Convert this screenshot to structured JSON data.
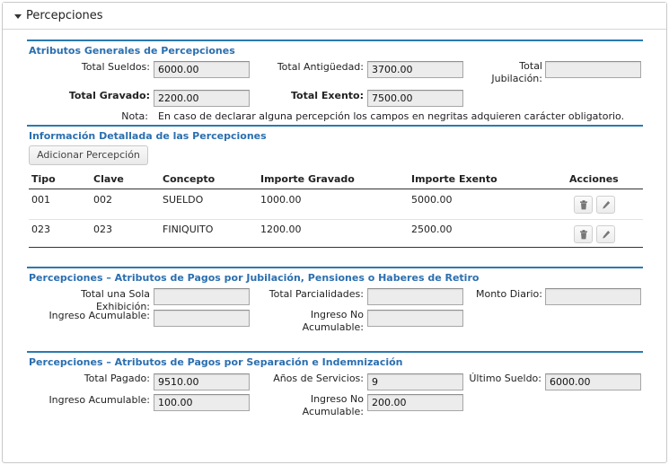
{
  "panel": {
    "title": "Percepciones"
  },
  "generales": {
    "title": "Atributos Generales  de Percepciones",
    "total_sueldos": {
      "label": "Total Sueldos:",
      "value": "6000.00"
    },
    "total_antiguedad": {
      "label": "Total Antigüedad:",
      "value": "3700.00"
    },
    "total_jubilacion": {
      "label_1": "Total",
      "label_2": "Jubilación:",
      "value": ""
    },
    "total_gravado": {
      "label": "Total Gravado:",
      "value": "2200.00"
    },
    "total_exento": {
      "label": "Total Exento:",
      "value": "7500.00"
    },
    "nota_label": "Nota:",
    "nota_text": "En caso de declarar alguna percepción los campos en negritas adquieren carácter obligatorio."
  },
  "detalle": {
    "title": "Información Detallada de las Percepciones",
    "add_button": "Adicionar Percepción",
    "columns": [
      "Tipo",
      "Clave",
      "Concepto",
      "Importe Gravado",
      "Importe Exento",
      "Acciones"
    ],
    "rows": [
      {
        "tipo": "001",
        "clave": "002",
        "concepto": "SUELDO",
        "gravado": "1000.00",
        "exento": "5000.00"
      },
      {
        "tipo": "023",
        "clave": "023",
        "concepto": "FINIQUITO",
        "gravado": "1200.00",
        "exento": "2500.00"
      }
    ],
    "icons": {
      "delete": "trash-icon",
      "edit": "pencil-icon"
    }
  },
  "jubilacion": {
    "title": "Percepciones – Atributos de Pagos por Jubilación, Pensiones o Haberes de Retiro",
    "total_una_sola": {
      "label": "Total una Sola Exhibición:",
      "value": ""
    },
    "total_parcialidades": {
      "label": "Total  Parcialidades:",
      "value": ""
    },
    "monto_diario": {
      "label": "Monto Diario:",
      "value": ""
    },
    "ingreso_acumulable": {
      "label": "Ingreso Acumulable:",
      "value": ""
    },
    "ingreso_no_acumulable": {
      "label_1": "Ingreso No",
      "label_2": "Acumulable:",
      "value": ""
    }
  },
  "separacion": {
    "title": "Percepciones – Atributos de Pagos por Separación e Indemnización",
    "total_pagado": {
      "label": "Total Pagado:",
      "value": "9510.00"
    },
    "anios_servicio": {
      "label": "Años de Servicios:",
      "value": "9"
    },
    "ultimo_sueldo": {
      "label": "Último Sueldo:",
      "value": "6000.00"
    },
    "ingreso_acumulable": {
      "label": "Ingreso Acumulable:",
      "value": "100.00"
    },
    "ingreso_no_acumulable": {
      "label_1": "Ingreso No",
      "label_2": "Acumulable:",
      "value": "200.00"
    }
  },
  "colors": {
    "accent": "#2a7ab0",
    "section_title": "#2a6fb0",
    "input_bg": "#ececec"
  }
}
